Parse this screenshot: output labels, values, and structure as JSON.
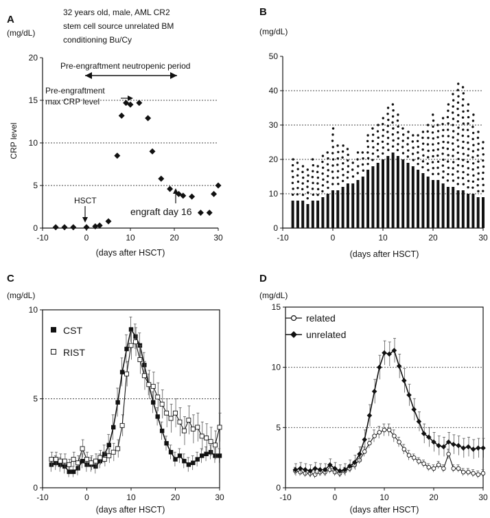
{
  "chart_data": [
    {
      "panel": "A",
      "type": "scatter",
      "note_lines": [
        "32 years old, male, AML CR2",
        "stem cell source unrelated BM",
        "conditioning Bu/Cy"
      ],
      "unit": "(mg/dL)",
      "ylabel": "CRP level",
      "xlabel": "(days after HSCT)",
      "xlim": [
        -10,
        30
      ],
      "ylim": [
        0,
        20
      ],
      "xticks": [
        -10,
        0,
        10,
        20,
        30
      ],
      "yticks": [
        0,
        5,
        10,
        15,
        20
      ],
      "grid_y": [
        5,
        10,
        15
      ],
      "x": [
        -7,
        -5,
        -3,
        0,
        2,
        3,
        5,
        7,
        8,
        9,
        10,
        12,
        14,
        15,
        17,
        19,
        21,
        22,
        24,
        26,
        28,
        29,
        30
      ],
      "y": [
        0.1,
        0.1,
        0.1,
        0.1,
        0.2,
        0.3,
        0.8,
        8.5,
        13.2,
        14.7,
        14.5,
        14.7,
        12.9,
        9.0,
        5.8,
        4.6,
        4.0,
        3.8,
        3.7,
        1.8,
        1.8,
        4.0,
        5.0
      ],
      "annotations": {
        "period": "Pre-engraftment neutropenic period",
        "maxcrp_line1": "Pre-engraftment",
        "maxcrp_line2": "max CRP level",
        "hsct": "HSCT",
        "engraft": "engraft day 16"
      }
    },
    {
      "panel": "B",
      "type": "scatter",
      "unit": "(mg/dL)",
      "xlabel": "(days after HSCT)",
      "xlim": [
        -10,
        30
      ],
      "ylim": [
        0,
        50
      ],
      "xticks": [
        -10,
        0,
        10,
        20,
        30
      ],
      "yticks": [
        0,
        10,
        20,
        30,
        40,
        50
      ],
      "grid_y": [
        10,
        20,
        30,
        40
      ],
      "days": [
        -8,
        -7,
        -6,
        -5,
        -4,
        -3,
        -2,
        -1,
        0,
        1,
        2,
        3,
        4,
        5,
        6,
        7,
        8,
        9,
        10,
        11,
        12,
        13,
        14,
        15,
        16,
        17,
        18,
        19,
        20,
        21,
        22,
        23,
        24,
        25,
        26,
        27,
        28,
        29,
        30
      ],
      "dense_upper": [
        8,
        8,
        8,
        7,
        8,
        8,
        9,
        10,
        11,
        11,
        12,
        13,
        13,
        14,
        15,
        17,
        18,
        19,
        20,
        21,
        22,
        21,
        20,
        19,
        18,
        17,
        16,
        15,
        14,
        14,
        13,
        12,
        12,
        11,
        11,
        10,
        10,
        9,
        9
      ],
      "point_max": [
        20,
        19,
        18,
        17,
        20,
        18,
        21,
        22,
        29,
        24,
        24,
        23,
        19,
        22,
        22,
        27,
        29,
        30,
        32,
        35,
        36,
        33,
        29,
        28,
        27,
        27,
        28,
        30,
        33,
        30,
        32,
        36,
        39,
        42,
        41,
        36,
        33,
        28,
        25
      ]
    },
    {
      "panel": "C",
      "type": "line",
      "unit": "(mg/dL)",
      "xlabel": "(days after HSCT)",
      "xlim": [
        -10,
        30
      ],
      "ylim": [
        0,
        10
      ],
      "xticks": [
        -10,
        0,
        10,
        20,
        30
      ],
      "yticks": [
        0,
        5,
        10
      ],
      "grid_y": [
        5
      ],
      "x": [
        -8,
        -7,
        -6,
        -5,
        -4,
        -3,
        -2,
        -1,
        0,
        1,
        2,
        3,
        4,
        5,
        6,
        7,
        8,
        9,
        10,
        11,
        12,
        13,
        14,
        15,
        16,
        17,
        18,
        19,
        20,
        21,
        22,
        23,
        24,
        25,
        26,
        27,
        28,
        29,
        30
      ],
      "series": [
        {
          "name": "CST",
          "marker": "filled-square",
          "values": [
            1.3,
            1.4,
            1.3,
            1.2,
            0.9,
            0.9,
            1.1,
            1.5,
            1.3,
            1.3,
            1.2,
            1.5,
            1.9,
            2.4,
            3.4,
            4.8,
            6.5,
            7.8,
            8.9,
            8.5,
            8.0,
            6.9,
            5.8,
            4.8,
            4.0,
            3.2,
            2.5,
            2.0,
            1.6,
            1.8,
            1.5,
            1.3,
            1.4,
            1.6,
            1.8,
            1.9,
            2.0,
            1.8,
            1.8
          ],
          "errors": [
            0.4,
            0.4,
            0.4,
            0.4,
            0.3,
            0.3,
            0.4,
            0.4,
            0.4,
            0.4,
            0.4,
            0.4,
            0.5,
            0.6,
            0.7,
            0.8,
            0.8,
            0.8,
            0.7,
            0.7,
            0.7,
            0.7,
            0.6,
            0.6,
            0.5,
            0.5,
            0.4,
            0.4,
            0.4,
            0.4,
            0.4,
            0.4,
            0.4,
            0.4,
            0.4,
            0.4,
            0.4,
            0.4,
            0.4
          ]
        },
        {
          "name": "RIST",
          "marker": "open-square",
          "values": [
            1.6,
            1.6,
            1.5,
            1.5,
            1.3,
            1.6,
            1.4,
            2.2,
            1.6,
            1.4,
            1.5,
            1.7,
            1.6,
            1.8,
            2.0,
            2.2,
            3.5,
            6.4,
            8.0,
            8.2,
            7.2,
            6.3,
            5.8,
            5.7,
            5.1,
            4.7,
            4.2,
            3.9,
            4.2,
            3.7,
            3.2,
            3.8,
            3.3,
            3.4,
            2.9,
            2.8,
            2.6,
            2.4,
            3.4
          ],
          "errors": [
            0.4,
            0.4,
            0.4,
            0.4,
            0.3,
            0.4,
            0.4,
            0.5,
            0.4,
            0.4,
            0.4,
            0.4,
            0.4,
            0.4,
            0.5,
            0.5,
            0.6,
            0.7,
            0.8,
            0.8,
            0.8,
            0.8,
            0.8,
            0.8,
            0.8,
            0.8,
            0.8,
            0.8,
            0.8,
            0.8,
            0.8,
            0.8,
            0.8,
            0.8,
            0.8,
            0.8,
            0.8,
            0.8,
            0.8
          ]
        }
      ]
    },
    {
      "panel": "D",
      "type": "line",
      "unit": "(mg/dL)",
      "xlabel": "(days after HSCT)",
      "xlim": [
        -10,
        30
      ],
      "ylim": [
        0,
        15
      ],
      "xticks": [
        -10,
        0,
        10,
        20,
        30
      ],
      "yticks": [
        0,
        5,
        10,
        15
      ],
      "grid_y": [
        5,
        10
      ],
      "x": [
        -8,
        -7,
        -6,
        -5,
        -4,
        -3,
        -2,
        -1,
        0,
        1,
        2,
        3,
        4,
        5,
        6,
        7,
        8,
        9,
        10,
        11,
        12,
        13,
        14,
        15,
        16,
        17,
        18,
        19,
        20,
        21,
        22,
        23,
        24,
        25,
        26,
        27,
        28,
        29,
        30
      ],
      "series": [
        {
          "name": "related",
          "marker": "open-circle",
          "values": [
            1.4,
            1.3,
            1.2,
            1.2,
            1.1,
            1.3,
            1.3,
            1.5,
            1.3,
            1.2,
            1.4,
            1.6,
            1.9,
            2.3,
            3.0,
            3.7,
            4.3,
            4.6,
            4.8,
            4.8,
            4.3,
            3.8,
            3.2,
            2.7,
            2.5,
            2.2,
            2.0,
            1.7,
            1.6,
            1.9,
            1.6,
            2.8,
            1.6,
            1.6,
            1.3,
            1.3,
            1.2,
            1.1,
            1.2
          ],
          "errors": [
            0.3,
            0.3,
            0.3,
            0.3,
            0.3,
            0.3,
            0.3,
            0.3,
            0.3,
            0.3,
            0.3,
            0.3,
            0.3,
            0.3,
            0.4,
            0.4,
            0.5,
            0.5,
            0.5,
            0.5,
            0.5,
            0.4,
            0.4,
            0.4,
            0.3,
            0.3,
            0.3,
            0.3,
            0.3,
            0.3,
            0.3,
            0.4,
            0.3,
            0.3,
            0.3,
            0.3,
            0.3,
            0.3,
            0.3
          ]
        },
        {
          "name": "unrelated",
          "marker": "filled-diamond",
          "values": [
            1.5,
            1.6,
            1.5,
            1.4,
            1.6,
            1.5,
            1.5,
            1.9,
            1.6,
            1.4,
            1.5,
            1.8,
            2.1,
            2.8,
            4.0,
            6.0,
            8.0,
            10.0,
            11.2,
            11.1,
            11.4,
            10.1,
            8.9,
            7.7,
            6.5,
            5.5,
            4.5,
            4.2,
            3.8,
            3.5,
            3.4,
            3.8,
            3.6,
            3.5,
            3.3,
            3.4,
            3.2,
            3.3,
            3.3
          ],
          "errors": [
            0.5,
            0.5,
            0.5,
            0.5,
            0.5,
            0.5,
            0.5,
            0.5,
            0.5,
            0.5,
            0.5,
            0.5,
            0.6,
            0.6,
            0.8,
            0.9,
            1.0,
            1.0,
            1.0,
            1.0,
            1.0,
            1.0,
            1.0,
            0.9,
            0.9,
            0.8,
            0.8,
            0.8,
            0.8,
            0.8,
            0.8,
            0.8,
            0.8,
            0.8,
            0.8,
            0.8,
            0.8,
            0.8,
            0.8
          ]
        }
      ]
    }
  ]
}
